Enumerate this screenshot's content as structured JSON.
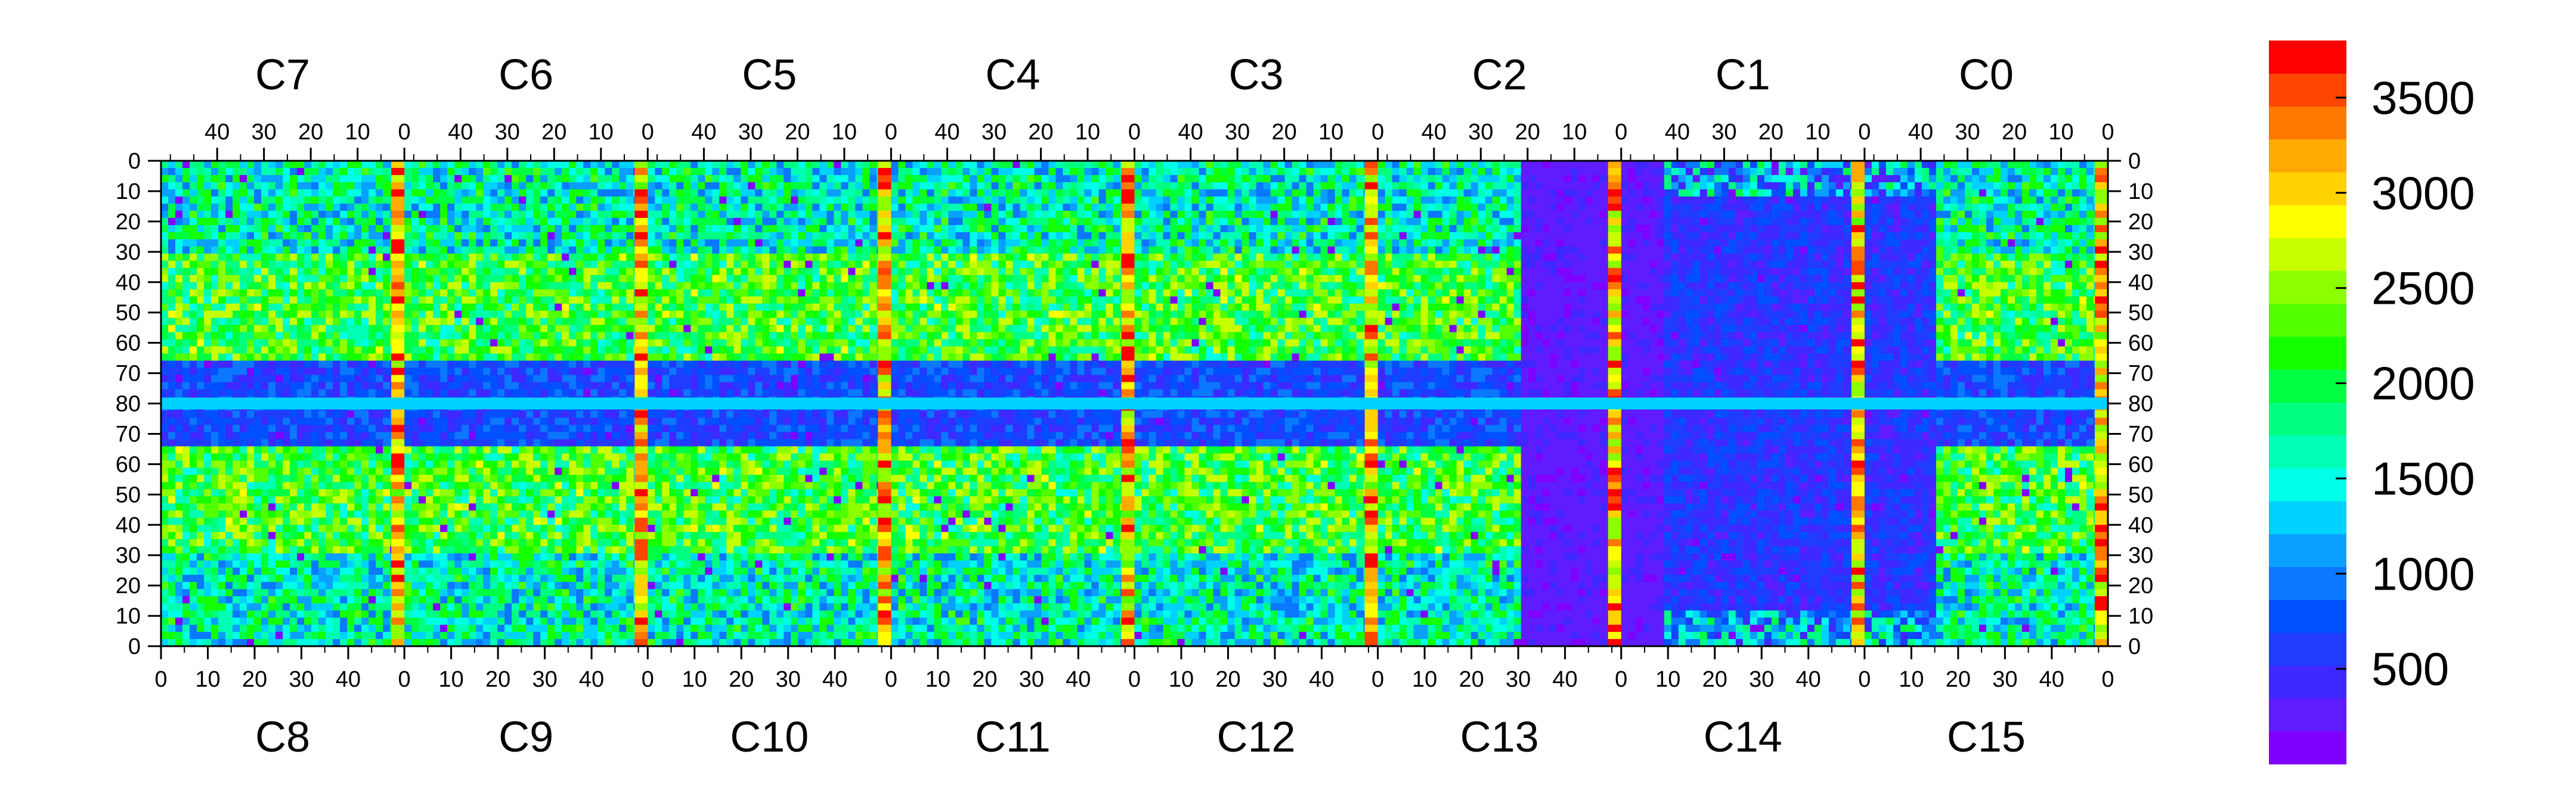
{
  "chart_data": {
    "type": "heatmap",
    "title": "",
    "xlabel": "",
    "ylabel": "",
    "top_chips": [
      "C7",
      "C6",
      "C5",
      "C4",
      "C3",
      "C2",
      "C1",
      "C0"
    ],
    "bottom_chips": [
      "C8",
      "C9",
      "C10",
      "C11",
      "C12",
      "C13",
      "C14",
      "C15"
    ],
    "top_x_ticks": [
      "40",
      "30",
      "20",
      "10",
      "0"
    ],
    "bottom_x_ticks": [
      "0",
      "10",
      "20",
      "30",
      "40"
    ],
    "y_ticks": [
      "0",
      "10",
      "20",
      "30",
      "40",
      "50",
      "60",
      "70",
      "80",
      "70",
      "60",
      "50",
      "40",
      "30",
      "20",
      "10",
      "0"
    ],
    "columns_per_chip": 52,
    "rows_per_half": 80,
    "zlim": [
      0,
      3800
    ],
    "colorbar_ticks": [
      500,
      1000,
      1500,
      2000,
      2500,
      3000,
      3500
    ],
    "colorbar_tick_labels": [
      "500",
      "1000",
      "1500",
      "2000",
      "2500",
      "3000",
      "3500"
    ],
    "palette": [
      "#7f00ff",
      "#5f1cff",
      "#3f28ff",
      "#1f3cff",
      "#0050ff",
      "#0a78ff",
      "#0aa0ff",
      "#00d2ff",
      "#00ffe6",
      "#00ffb4",
      "#00ff80",
      "#00ff40",
      "#14ff00",
      "#50ff00",
      "#8cff00",
      "#c8ff00",
      "#ffff00",
      "#ffd200",
      "#ffaa00",
      "#ff7800",
      "#ff4600",
      "#ff0000"
    ],
    "stripe_columns": [
      0,
      1,
      2,
      3,
      4,
      5,
      6,
      7
    ],
    "grid": false,
    "colorbar_position": "right"
  }
}
